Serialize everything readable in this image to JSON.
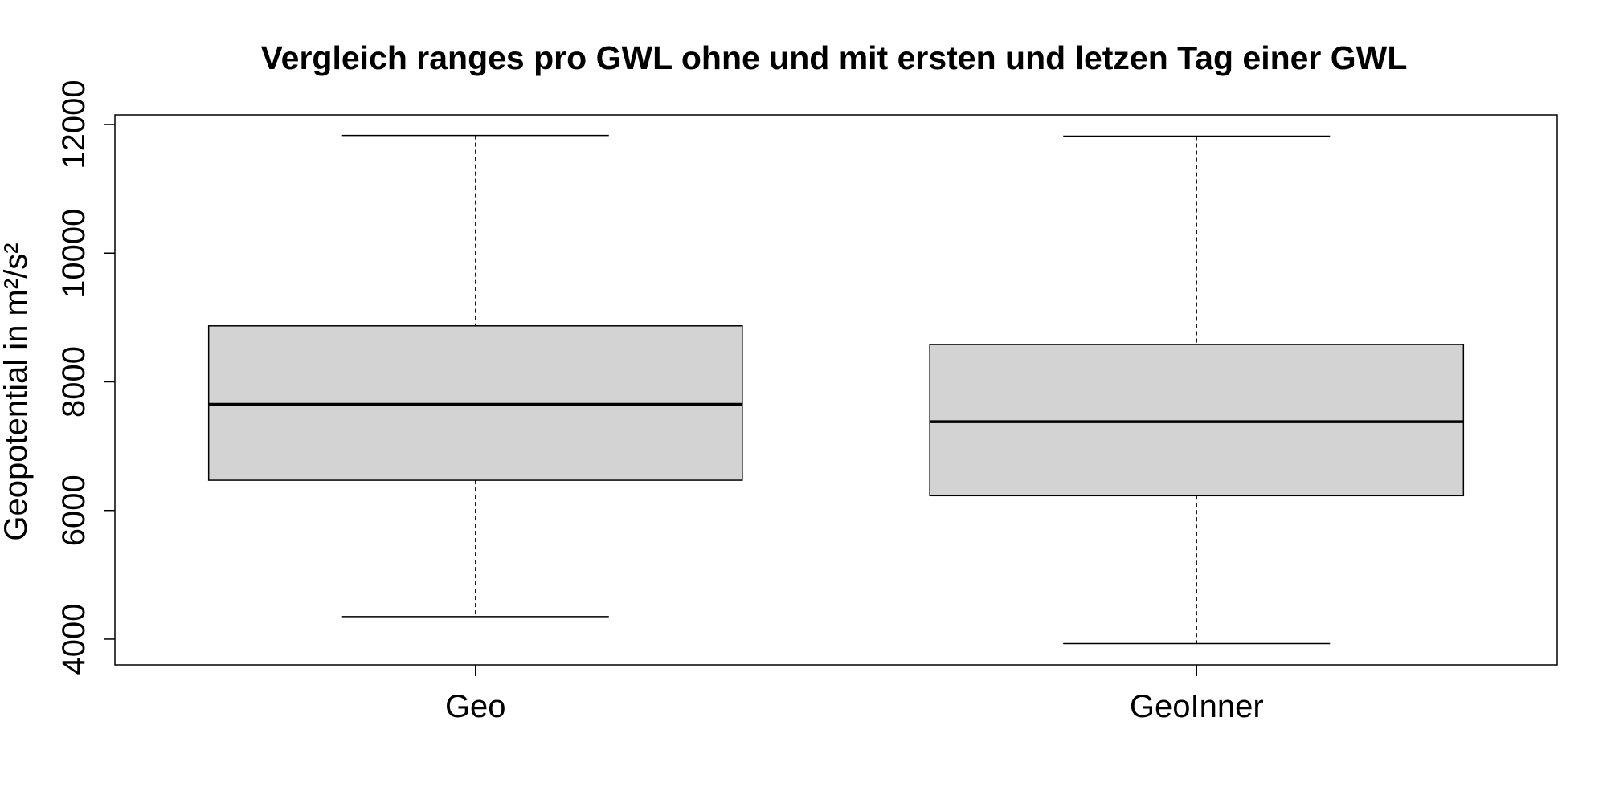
{
  "chart_data": {
    "type": "boxplot",
    "title": "Vergleich ranges pro GWL ohne und mit ersten und letzen Tag einer GWL",
    "xlabel": "",
    "ylabel": "Geopotential in m²/s²",
    "ylim": [
      3600,
      12150
    ],
    "y_ticks": [
      4000,
      6000,
      8000,
      10000,
      12000
    ],
    "y_tick_labels": [
      "4000",
      "6000",
      "8000",
      "10000",
      "12000"
    ],
    "grid": false,
    "categories": [
      "Geo",
      "GeoInner"
    ],
    "boxes": [
      {
        "name": "Geo",
        "whisker_low": 4350,
        "q1": 6470,
        "median": 7650,
        "q3": 8870,
        "whisker_high": 11830
      },
      {
        "name": "GeoInner",
        "whisker_low": 3930,
        "q1": 6230,
        "median": 7380,
        "q3": 8580,
        "whisker_high": 11820
      }
    ],
    "colors": {
      "box_fill": "#d3d3d3",
      "stroke": "#000000"
    }
  }
}
